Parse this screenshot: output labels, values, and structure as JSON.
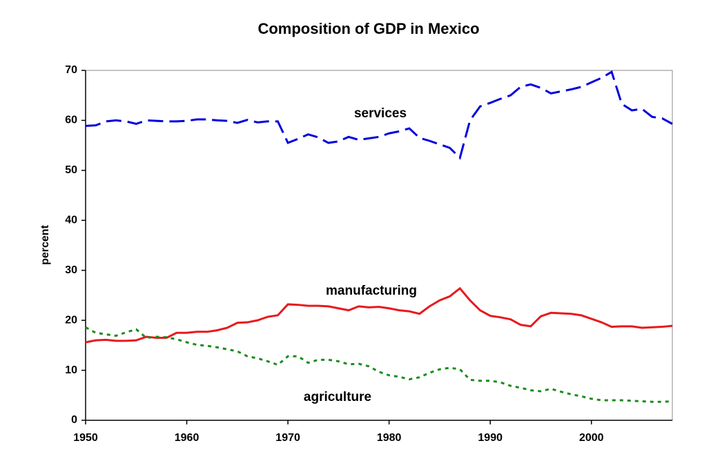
{
  "chart_data": {
    "type": "line",
    "title": "Composition of GDP in Mexico",
    "y_label": "percent",
    "x": [
      1950,
      1951,
      1952,
      1953,
      1954,
      1955,
      1956,
      1957,
      1958,
      1959,
      1960,
      1961,
      1962,
      1963,
      1964,
      1965,
      1966,
      1967,
      1968,
      1969,
      1970,
      1971,
      1972,
      1973,
      1974,
      1975,
      1976,
      1977,
      1978,
      1979,
      1980,
      1981,
      1982,
      1983,
      1984,
      1985,
      1986,
      1987,
      1988,
      1989,
      1990,
      1991,
      1992,
      1993,
      1994,
      1995,
      1996,
      1997,
      1998,
      1999,
      2000,
      2001,
      2002,
      2003,
      2004,
      2005,
      2006,
      2007,
      2008
    ],
    "series": [
      {
        "name": "services",
        "color": "#0000dd",
        "line_style": "dashed",
        "values": [
          58.9,
          59.0,
          59.8,
          60.0,
          59.8,
          59.3,
          60.0,
          59.9,
          59.8,
          59.8,
          59.9,
          60.2,
          60.2,
          60.0,
          59.9,
          59.5,
          60.1,
          59.6,
          59.8,
          59.8,
          55.5,
          56.3,
          57.2,
          56.6,
          55.5,
          55.8,
          56.7,
          56.1,
          56.4,
          56.7,
          57.4,
          57.8,
          58.4,
          56.5,
          55.9,
          55.2,
          54.5,
          52.5,
          60.0,
          62.8,
          63.5,
          64.3,
          65.0,
          66.7,
          67.2,
          66.5,
          65.4,
          65.8,
          66.2,
          66.7,
          67.6,
          68.5,
          69.7,
          63.3,
          62.0,
          62.3,
          60.7,
          60.4,
          59.3
        ]
      },
      {
        "name": "manufacturing",
        "color": "#e8191c",
        "line_style": "solid",
        "values": [
          15.6,
          16.0,
          16.1,
          15.9,
          15.9,
          16.0,
          16.7,
          16.5,
          16.5,
          17.5,
          17.5,
          17.7,
          17.7,
          18.0,
          18.5,
          19.5,
          19.6,
          20.0,
          20.7,
          21.0,
          23.2,
          23.1,
          22.9,
          22.9,
          22.8,
          22.4,
          22.0,
          22.8,
          22.6,
          22.7,
          22.4,
          22.0,
          21.8,
          21.3,
          22.8,
          24.0,
          24.8,
          26.4,
          24.0,
          22.0,
          20.9,
          20.6,
          20.2,
          19.1,
          18.8,
          20.8,
          21.5,
          21.4,
          21.3,
          21.0,
          20.3,
          19.6,
          18.7,
          18.8,
          18.8,
          18.5,
          18.6,
          18.7,
          18.9
        ]
      },
      {
        "name": "agriculture",
        "color": "#1a8c1a",
        "line_style": "dotted",
        "values": [
          18.6,
          17.5,
          17.2,
          16.9,
          17.6,
          18.2,
          16.5,
          16.7,
          16.6,
          16.2,
          15.6,
          15.1,
          14.9,
          14.6,
          14.2,
          13.8,
          12.8,
          12.4,
          11.8,
          11.1,
          12.8,
          12.8,
          11.5,
          12.1,
          12.1,
          11.8,
          11.2,
          11.3,
          10.8,
          9.7,
          9.0,
          8.7,
          8.2,
          8.6,
          9.5,
          10.2,
          10.5,
          10.2,
          8.1,
          7.9,
          7.9,
          7.6,
          6.9,
          6.5,
          6.0,
          5.8,
          6.3,
          5.7,
          5.2,
          4.8,
          4.3,
          4.0,
          4.0,
          4.0,
          3.9,
          3.8,
          3.7,
          3.7,
          3.8
        ]
      }
    ],
    "xlim": [
      1950,
      2008
    ],
    "xticks": [
      1950,
      1960,
      1970,
      1980,
      1990,
      2000
    ],
    "ylim": [
      0,
      70
    ],
    "yticks": [
      0,
      10,
      20,
      30,
      40,
      50,
      60,
      70
    ],
    "grid": false
  }
}
